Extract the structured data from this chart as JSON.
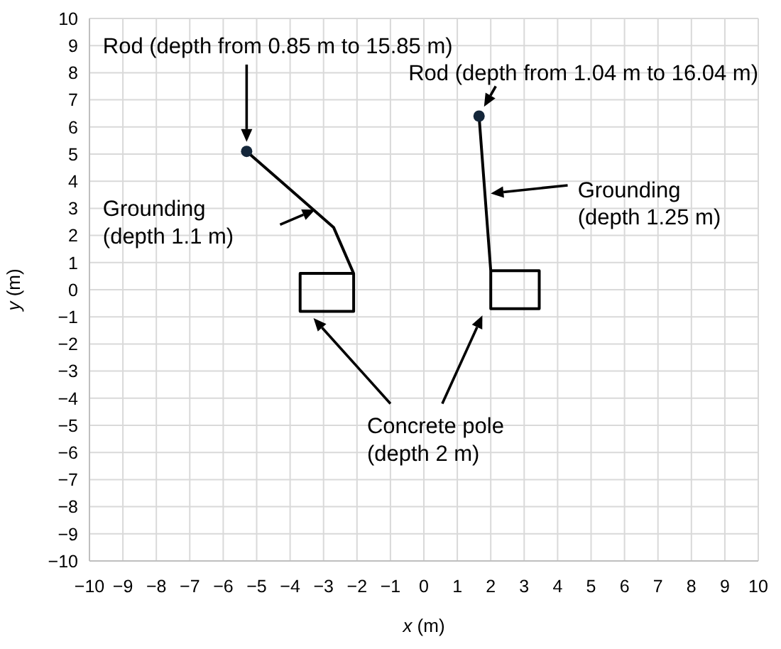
{
  "chart_data": {
    "type": "line",
    "xlabel": "x (m)",
    "ylabel": "y (m)",
    "xlim": [
      -10,
      10
    ],
    "ylim": [
      -10,
      10
    ],
    "xticks": [
      -10,
      -9,
      -8,
      -7,
      -6,
      -5,
      -4,
      -3,
      -2,
      -1,
      0,
      1,
      2,
      3,
      4,
      5,
      6,
      7,
      8,
      9,
      10
    ],
    "yticks": [
      -10,
      -9,
      -8,
      -7,
      -6,
      -5,
      -4,
      -3,
      -2,
      -1,
      0,
      1,
      2,
      3,
      4,
      5,
      6,
      7,
      8,
      9,
      10
    ],
    "grid": true,
    "series": [
      {
        "color": "#000000",
        "x": [
          -5.3,
          -2.7,
          -2.1,
          -2.1,
          -3.7,
          -3.7,
          -2.1
        ],
        "values": [
          5.1,
          2.3,
          0.6,
          -0.8,
          -0.8,
          0.6,
          0.6
        ]
      },
      {
        "color": "#000000",
        "x": [
          1.65,
          2.0,
          2.0,
          3.45,
          3.45,
          2.0
        ],
        "values": [
          6.4,
          0.7,
          -0.7,
          -0.7,
          0.7,
          0.7
        ]
      },
      {
        "type": "scatter",
        "color": "#14263a",
        "marker": "circle",
        "x": [
          -5.3,
          1.65
        ],
        "values": [
          5.1,
          6.4
        ]
      }
    ],
    "annotations": [
      "Rod (depth from 0.85 m to 15.85 m)",
      "Rod (depth from 1.04 m to 16.04 m)",
      "Grounding\n(depth 1.1 m)",
      "Grounding\n(depth 1.25 m)",
      "Concrete pole\n(depth 2 m)"
    ]
  }
}
